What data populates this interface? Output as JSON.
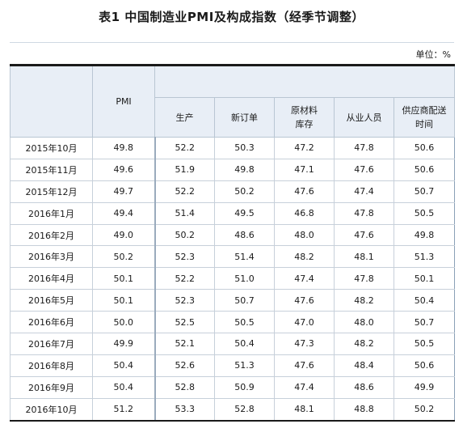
{
  "title": "表1 中国制造业PMI及构成指数（经季节调整）",
  "unit": "单位：%",
  "headers": {
    "month": "",
    "pmi": "PMI",
    "sub": [
      "生产",
      "新订单",
      "原材料\n库存",
      "从业人员",
      "供应商配送\n时间"
    ]
  },
  "rows": [
    {
      "month": "2015年10月",
      "pmi": "49.8",
      "v": [
        "52.2",
        "50.3",
        "47.2",
        "47.8",
        "50.6"
      ]
    },
    {
      "month": "2015年11月",
      "pmi": "49.6",
      "v": [
        "51.9",
        "49.8",
        "47.1",
        "47.6",
        "50.6"
      ]
    },
    {
      "month": "2015年12月",
      "pmi": "49.7",
      "v": [
        "52.2",
        "50.2",
        "47.6",
        "47.4",
        "50.7"
      ]
    },
    {
      "month": "2016年1月",
      "pmi": "49.4",
      "v": [
        "51.4",
        "49.5",
        "46.8",
        "47.8",
        "50.5"
      ]
    },
    {
      "month": "2016年2月",
      "pmi": "49.0",
      "v": [
        "50.2",
        "48.6",
        "48.0",
        "47.6",
        "49.8"
      ]
    },
    {
      "month": "2016年3月",
      "pmi": "50.2",
      "v": [
        "52.3",
        "51.4",
        "48.2",
        "48.1",
        "51.3"
      ]
    },
    {
      "month": "2016年4月",
      "pmi": "50.1",
      "v": [
        "52.2",
        "51.0",
        "47.4",
        "47.8",
        "50.1"
      ]
    },
    {
      "month": "2016年5月",
      "pmi": "50.1",
      "v": [
        "52.3",
        "50.7",
        "47.6",
        "48.2",
        "50.4"
      ]
    },
    {
      "month": "2016年6月",
      "pmi": "50.0",
      "v": [
        "52.5",
        "50.5",
        "47.0",
        "48.0",
        "50.7"
      ]
    },
    {
      "month": "2016年7月",
      "pmi": "49.9",
      "v": [
        "52.1",
        "50.4",
        "47.3",
        "48.2",
        "50.5"
      ]
    },
    {
      "month": "2016年8月",
      "pmi": "50.4",
      "v": [
        "52.6",
        "51.3",
        "47.6",
        "48.4",
        "50.6"
      ]
    },
    {
      "month": "2016年9月",
      "pmi": "50.4",
      "v": [
        "52.8",
        "50.9",
        "47.4",
        "48.6",
        "49.9"
      ]
    },
    {
      "month": "2016年10月",
      "pmi": "51.2",
      "v": [
        "53.3",
        "52.8",
        "48.1",
        "48.8",
        "50.2"
      ]
    }
  ]
}
